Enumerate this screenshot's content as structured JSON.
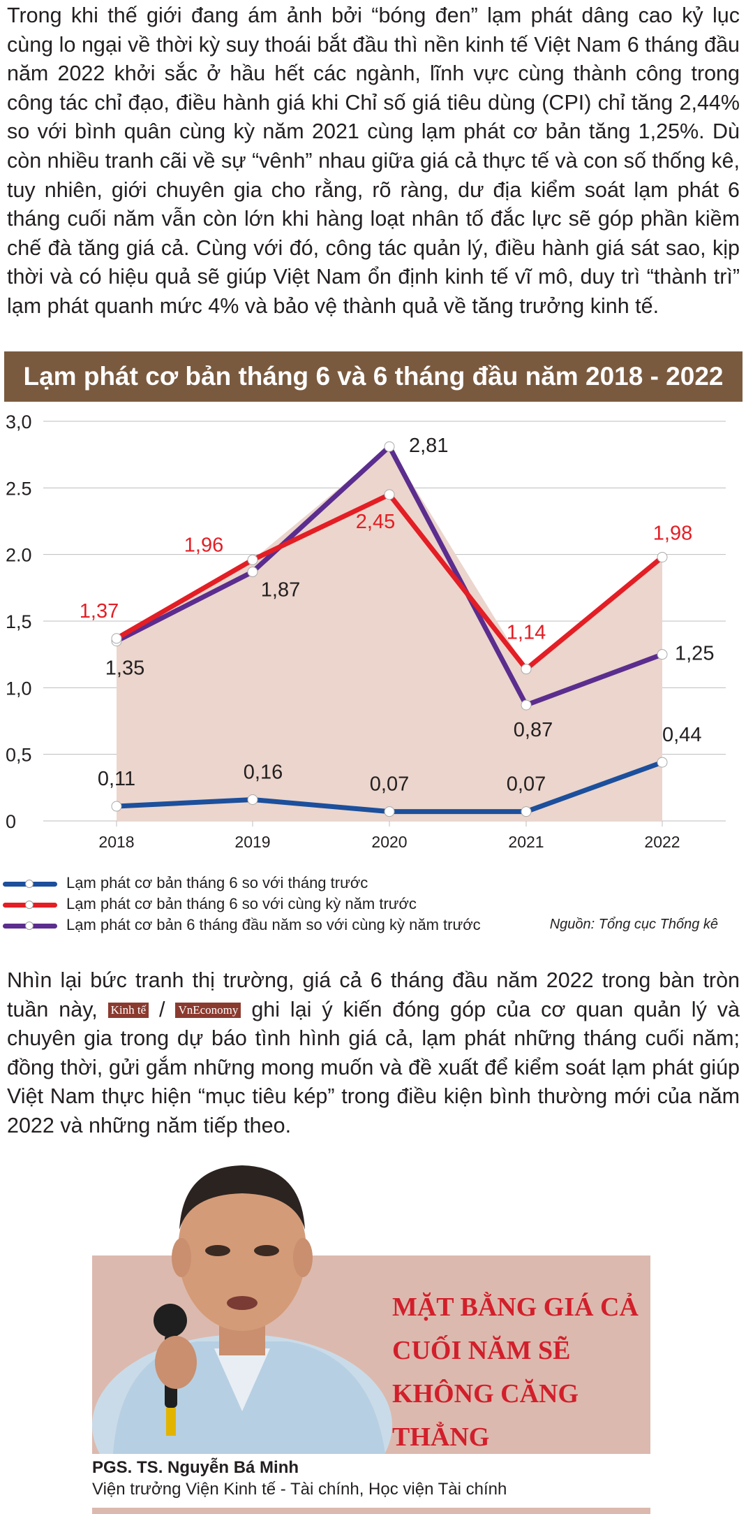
{
  "intro": "Trong khi thế giới đang ám ảnh bởi “bóng đen” lạm phát dâng cao kỷ lục cùng lo ngại về thời kỳ suy thoái bắt đầu thì nền kinh tế Việt Nam 6 tháng đầu năm 2022 khởi sắc ở hầu hết các ngành, lĩnh vực cùng thành công trong công tác chỉ đạo, điều hành giá khi Chỉ số giá tiêu dùng (CPI) chỉ tăng 2,44% so với bình quân cùng kỳ năm 2021 cùng lạm phát cơ bản tăng 1,25%. Dù còn nhiều tranh cãi về sự “vênh” nhau giữa giá cả thực tế và con số thống kê, tuy nhiên, giới chuyên gia cho rằng, rõ ràng, dư địa kiểm soát lạm phát 6 tháng cuối năm vẫn còn lớn khi hàng loạt nhân tố đắc lực sẽ góp phần kiềm chế đà tăng giá cả. Cùng với đó, công tác quản lý, điều hành giá sát sao, kịp thời và có hiệu quả sẽ giúp Việt Nam ổn định kinh tế vĩ mô, duy trì “thành trì” lạm phát quanh mức 4% và bảo vệ thành quả về tăng trưởng kinh tế.",
  "colors": {
    "banner": "#7a5a3f",
    "blue": "#1c4f9c",
    "red": "#e31e25",
    "purple": "#5b2d8e",
    "area": "#ebd5cc",
    "accent": "#d21f2b"
  },
  "chart_data": {
    "type": "line",
    "title": "Lạm phát cơ bản tháng 6 và 6 tháng đầu năm 2018 - 2022",
    "x": [
      "2018",
      "2019",
      "2020",
      "2021",
      "2022"
    ],
    "y_ticks": [
      "0",
      "0,5",
      "1,0",
      "1,5",
      "2.0",
      "2.5",
      "3,0"
    ],
    "ylim": [
      0,
      3.0
    ],
    "grid": true,
    "series": [
      {
        "name": "Lạm phát cơ bản tháng 6 so với tháng trước",
        "color": "#1c4f9c",
        "values": [
          0.11,
          0.16,
          0.07,
          0.07,
          0.44
        ],
        "labels": [
          "0,11",
          "0,16",
          "0,07",
          "0,07",
          "0,44"
        ],
        "label_color": "#231f20"
      },
      {
        "name": "Lạm phát cơ bản tháng 6 so với cùng kỳ năm trước",
        "color": "#e31e25",
        "values": [
          1.37,
          1.96,
          2.45,
          1.14,
          1.98
        ],
        "labels": [
          "1,37",
          "1,96",
          "2,45",
          "1,14",
          "1,98"
        ],
        "label_color": "#e31e25"
      },
      {
        "name": "Lạm phát cơ bản 6 tháng đầu năm so với cùng kỳ năm trước",
        "color": "#5b2d8e",
        "values": [
          1.35,
          1.87,
          2.81,
          0.87,
          1.25
        ],
        "labels": [
          "1,35",
          "1,87",
          "2,81",
          "0,87",
          "1,25"
        ],
        "label_color": "#231f20"
      }
    ],
    "source": "Nguồn: Tổng cục Thống kê"
  },
  "para2": {
    "before": "Nhìn lại bức tranh thị trường, giá cả 6 tháng đầu năm 2022 trong bàn tròn tuần này,",
    "badge1": "Kinh tế",
    "separator": "/",
    "badge2": "VnEconomy",
    "after": "ghi lại ý kiến đóng góp của cơ quan quản lý và chuyên gia trong dự báo tình hình giá cả, lạm phát những tháng cuối năm; đồng thời, gửi gắm những mong muốn và đề xuất để kiểm soát lạm phát giúp Việt Nam thực hiện “mục tiêu kép” trong điều kiện bình thường mới của năm 2022 và những năm tiếp theo."
  },
  "profile": {
    "headline": "MẶT BẰNG GIÁ CẢ CUỐI NĂM SẼ KHÔNG CĂNG THẲNG",
    "name": "PGS. TS. Nguyễn Bá Minh",
    "title": "Viện trưởng Viện Kinh tế - Tài chính, Học viện Tài chính"
  }
}
